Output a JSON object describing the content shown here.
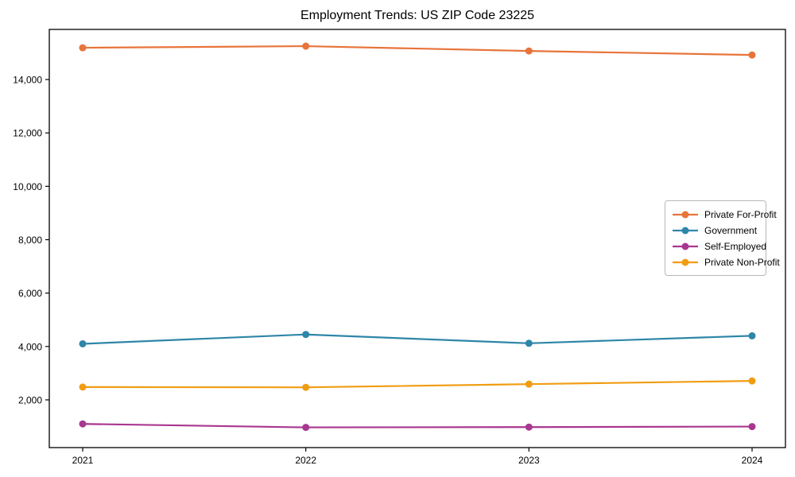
{
  "figure": {
    "title": "Employment Trends: US ZIP Code 23225"
  },
  "chart_data": {
    "type": "line",
    "title": "Employment Trends: US ZIP Code 23225",
    "categories": [
      "2021",
      "2022",
      "2023",
      "2024"
    ],
    "series": [
      {
        "name": "Private For-Profit",
        "color": "#E8743B",
        "values": [
          15190,
          15250,
          15070,
          14920
        ]
      },
      {
        "name": "Government",
        "color": "#2E86A8",
        "values": [
          4100,
          4450,
          4120,
          4400
        ]
      },
      {
        "name": "Self-Employed",
        "color": "#A93790",
        "values": [
          1100,
          970,
          980,
          1000
        ]
      },
      {
        "name": "Private Non-Profit",
        "color": "#F09D13",
        "values": [
          2480,
          2470,
          2590,
          2710
        ]
      }
    ],
    "xlabel": "",
    "ylabel": "",
    "ylim": [
      213,
      15877
    ],
    "yticks": {
      "values": [
        2000,
        4000,
        6000,
        8000,
        10000,
        12000,
        14000
      ],
      "labels": [
        "2,000",
        "4,000",
        "6,000",
        "8,000",
        "10,000",
        "12,000",
        "14,000"
      ]
    },
    "grid": false,
    "legend_position": "center right",
    "marker": "circle",
    "axis_color": "#000000"
  }
}
